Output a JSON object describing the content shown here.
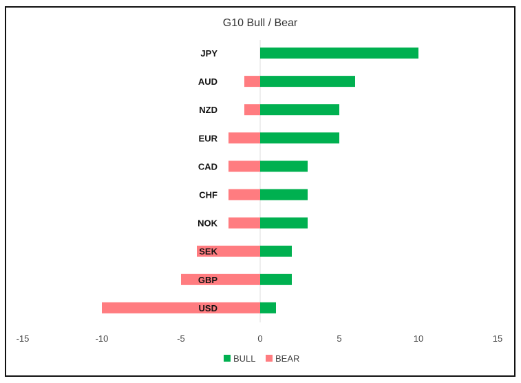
{
  "chart_data": {
    "type": "bar",
    "orientation": "horizontal",
    "title": "G10 Bull / Bear",
    "categories": [
      "JPY",
      "AUD",
      "NZD",
      "EUR",
      "CAD",
      "CHF",
      "NOK",
      "SEK",
      "GBP",
      "USD"
    ],
    "series": [
      {
        "name": "BULL",
        "color": "#00b050",
        "values": [
          10,
          6,
          5,
          5,
          3,
          3,
          3,
          2,
          2,
          1
        ]
      },
      {
        "name": "BEAR",
        "color": "#ff7c80",
        "values": [
          0,
          -1,
          -1,
          -2,
          -2,
          -2,
          -2,
          -4,
          -5,
          -10
        ]
      }
    ],
    "xlim": [
      -15,
      15
    ],
    "xticks": [
      "-15",
      "-10",
      "-5",
      "0",
      "5",
      "10",
      "15"
    ],
    "xtick_values": [
      -15,
      -10,
      -5,
      0,
      5,
      10,
      15
    ],
    "xlabel": "",
    "ylabel": "",
    "grid": false,
    "legend": "bottom"
  }
}
